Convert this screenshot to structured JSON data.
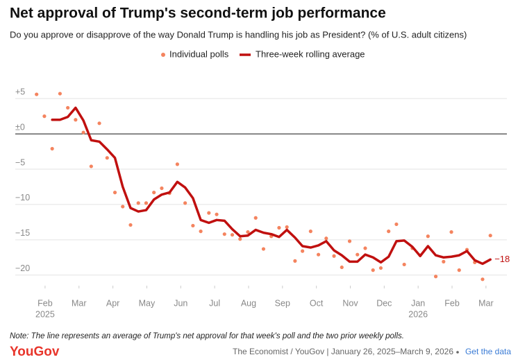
{
  "chart_data": {
    "type": "line",
    "title": "Net approval of Trump's second-term job performance",
    "subtitle": "Do you approve or disapprove of the way Donald Trump is handling his job as President? (% of U.S. adult citizens)",
    "x": [
      0.75,
      0.98,
      1.21,
      1.44,
      1.67,
      1.9,
      2.13,
      2.36,
      2.6,
      2.83,
      3.06,
      3.29,
      3.52,
      3.75,
      3.98,
      4.21,
      4.44,
      4.67,
      4.9,
      5.13,
      5.36,
      5.59,
      5.83,
      6.06,
      6.29,
      6.52,
      6.75,
      6.98,
      7.21,
      7.44,
      7.67,
      7.9,
      8.13,
      8.37,
      8.59,
      8.83,
      9.06,
      9.29,
      9.52,
      9.75,
      9.98,
      10.21,
      10.44,
      10.67,
      10.9,
      11.13,
      11.36,
      11.59,
      11.83,
      12.06,
      12.29,
      12.52,
      12.75,
      12.98,
      13.21,
      13.44,
      13.67,
      13.9,
      14.13
    ],
    "series": [
      {
        "name": "Individual polls",
        "kind": "dots",
        "color": "#f4845f",
        "values": [
          5.6,
          2.5,
          -2.1,
          5.7,
          3.7,
          2.0,
          0.2,
          -4.6,
          1.5,
          -3.4,
          -8.3,
          -10.3,
          -12.9,
          -9.8,
          -9.8,
          -8.3,
          -7.7,
          -8.4,
          -4.3,
          -9.8,
          -13.0,
          -13.8,
          -11.2,
          -11.4,
          -14.2,
          -14.3,
          -14.9,
          -13.9,
          -11.9,
          -16.3,
          -14.5,
          -13.3,
          -13.2,
          -18.0,
          -16.6,
          -13.8,
          -17.1,
          -14.8,
          -17.3,
          -18.9,
          -15.2,
          -17.1,
          -16.2,
          -19.3,
          -19.0,
          -13.8,
          -12.8,
          -18.5,
          -16.2,
          -17.2,
          -14.5,
          -20.2,
          -18.1,
          -13.9,
          -19.3,
          -16.4,
          -18.2,
          -20.6,
          -14.4
        ]
      },
      {
        "name": "Three-week rolling average",
        "kind": "line",
        "color": "#c0100f",
        "values": [
          null,
          null,
          2.0,
          2.0,
          2.4,
          3.7,
          1.9,
          -0.9,
          -1.1,
          -2.2,
          -3.4,
          -7.5,
          -10.5,
          -11.0,
          -10.8,
          -9.3,
          -8.6,
          -8.3,
          -6.8,
          -7.6,
          -9.1,
          -12.2,
          -12.6,
          -12.2,
          -12.3,
          -13.5,
          -14.5,
          -14.4,
          -13.6,
          -14.0,
          -14.2,
          -14.6,
          -13.6,
          -14.7,
          -15.9,
          -16.1,
          -15.8,
          -15.2,
          -16.5,
          -17.2,
          -18.1,
          -18.1,
          -17.1,
          -17.5,
          -18.2,
          -17.4,
          -15.2,
          -15.1,
          -16.0,
          -17.3,
          -15.9,
          -17.2,
          -17.5,
          -17.4,
          -17.2,
          -16.6,
          -17.9,
          -18.4,
          -17.8
        ],
        "value_labels": [
          null,
          null,
          null,
          null,
          null,
          null,
          null,
          null,
          null,
          null,
          null,
          null,
          null,
          null,
          null,
          null,
          null,
          null,
          null,
          null,
          null,
          null,
          null,
          null,
          null,
          null,
          null,
          null,
          null,
          null,
          null,
          null,
          null,
          null,
          null,
          null,
          null,
          null,
          null,
          null,
          null,
          null,
          null,
          null,
          null,
          null,
          null,
          null,
          null,
          null,
          null,
          null,
          null,
          null,
          null,
          null,
          null,
          null,
          "−18"
        ]
      }
    ],
    "xlim": [
      0.49,
      14.31
    ],
    "xticks": [
      {
        "value": 1,
        "label": "Feb"
      },
      {
        "value": 2,
        "label": "Mar"
      },
      {
        "value": 3,
        "label": "Apr"
      },
      {
        "value": 4,
        "label": "May"
      },
      {
        "value": 5,
        "label": "Jun"
      },
      {
        "value": 6,
        "label": "Jul"
      },
      {
        "value": 7,
        "label": "Aug"
      },
      {
        "value": 8,
        "label": "Sep"
      },
      {
        "value": 9,
        "label": "Oct"
      },
      {
        "value": 10,
        "label": "Nov"
      },
      {
        "value": 11,
        "label": "Dec"
      },
      {
        "value": 12,
        "label": "Jan"
      },
      {
        "value": 13,
        "label": "Feb"
      },
      {
        "value": 14,
        "label": "Mar"
      }
    ],
    "xtick_years": [
      {
        "value": 1,
        "label": "2025"
      },
      {
        "value": 12,
        "label": "2026"
      }
    ],
    "ylim": [
      -21.5,
      6
    ],
    "yticks": [
      {
        "value": 5,
        "label": "+5"
      },
      {
        "value": 0,
        "label": "±0"
      },
      {
        "value": -5,
        "label": "−5"
      },
      {
        "value": -10,
        "label": "−10"
      },
      {
        "value": -15,
        "label": "−15"
      },
      {
        "value": -20,
        "label": "−20"
      }
    ],
    "grid": true,
    "zero_line": true,
    "note": "Note: The line represents an average of Trump's net approval for that week's poll and the two prior weekly polls.",
    "logo": "YouGov",
    "source": "The Economist / YouGov | January 26, 2025–March 9, 2026",
    "get_data": "Get the data"
  }
}
